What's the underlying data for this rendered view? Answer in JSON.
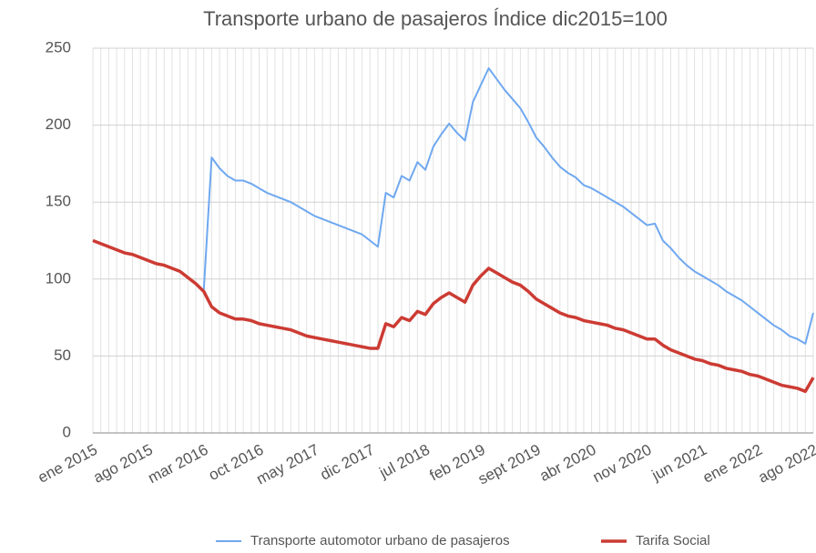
{
  "chart_data": {
    "type": "line",
    "title": "Transporte urbano de pasajeros Índice dic2015=100",
    "categories": [
      "ene 2015",
      null,
      null,
      null,
      null,
      null,
      null,
      "ago 2015",
      null,
      null,
      null,
      null,
      null,
      null,
      "mar 2016",
      null,
      null,
      null,
      null,
      null,
      null,
      "oct 2016",
      null,
      null,
      null,
      null,
      null,
      null,
      "may 2017",
      null,
      null,
      null,
      null,
      null,
      null,
      "dic 2017",
      null,
      null,
      null,
      null,
      null,
      null,
      "jul 2018",
      null,
      null,
      null,
      null,
      null,
      null,
      "feb 2019",
      null,
      null,
      null,
      null,
      null,
      null,
      "sept 2019",
      null,
      null,
      null,
      null,
      null,
      null,
      "abr 2020",
      null,
      null,
      null,
      null,
      null,
      null,
      "nov 2020",
      null,
      null,
      null,
      null,
      null,
      null,
      "jun 2021",
      null,
      null,
      null,
      null,
      null,
      null,
      "ene 2022",
      null,
      null,
      null,
      null,
      null,
      null,
      "ago 2022"
    ],
    "series": [
      {
        "name": "Transporte automotor urbano de pasajeros",
        "color": "#6fa8f0",
        "values": [
          125,
          123,
          121,
          119,
          117,
          116,
          114,
          112,
          110,
          109,
          107,
          105,
          101,
          97,
          92,
          179,
          172,
          167,
          164,
          164,
          162,
          159,
          156,
          154,
          152,
          150,
          147,
          144,
          141,
          139,
          137,
          135,
          133,
          131,
          129,
          125,
          121,
          156,
          153,
          167,
          164,
          176,
          171,
          186,
          194,
          201,
          195,
          190,
          215,
          226,
          237,
          230,
          223,
          217,
          211,
          202,
          192,
          186,
          179,
          173,
          169,
          166,
          161,
          159,
          156,
          153,
          150,
          147,
          143,
          139,
          135,
          136,
          125,
          120,
          114,
          109,
          105,
          102,
          99,
          96,
          92,
          89,
          86,
          82,
          78,
          74,
          70,
          67,
          63,
          61,
          58,
          78
        ]
      },
      {
        "name": "Tarifa Social",
        "color": "#cc3b33",
        "values": [
          125,
          123,
          121,
          119,
          117,
          116,
          114,
          112,
          110,
          109,
          107,
          105,
          101,
          97,
          92,
          82,
          78,
          76,
          74,
          74,
          73,
          71,
          70,
          69,
          68,
          67,
          65,
          63,
          62,
          61,
          60,
          59,
          58,
          57,
          56,
          55,
          55,
          71,
          69,
          75,
          73,
          79,
          77,
          84,
          88,
          91,
          88,
          85,
          96,
          102,
          107,
          104,
          101,
          98,
          96,
          92,
          87,
          84,
          81,
          78,
          76,
          75,
          73,
          72,
          71,
          70,
          68,
          67,
          65,
          63,
          61,
          61,
          57,
          54,
          52,
          50,
          48,
          47,
          45,
          44,
          42,
          41,
          40,
          38,
          37,
          35,
          33,
          31,
          30,
          29,
          27,
          36
        ]
      }
    ],
    "ylim": [
      0,
      250
    ],
    "yticks": [
      0,
      50,
      100,
      150,
      200,
      250
    ],
    "grid": true
  }
}
